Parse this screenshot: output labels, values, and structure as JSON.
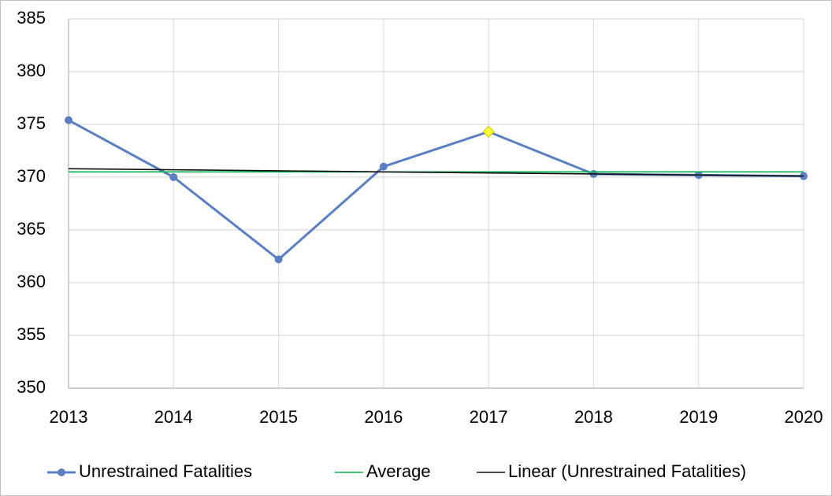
{
  "chart_data": {
    "type": "line",
    "categories": [
      "2013",
      "2014",
      "2015",
      "2016",
      "2017",
      "2018",
      "2019",
      "2020"
    ],
    "series": [
      {
        "name": "Unrestrained Fatalities",
        "color": "#5a7fc2",
        "values": [
          375.4,
          370,
          362.2,
          371,
          374.3,
          370.3,
          370.2,
          370.1
        ],
        "markers": true
      },
      {
        "name": "Average",
        "color": "#00b050",
        "values": [
          370.5,
          370.5,
          370.5,
          370.5,
          370.5,
          370.5,
          370.5,
          370.5
        ],
        "markers": false
      },
      {
        "name": "Linear (Unrestrained Fatalities)",
        "color": "#111111",
        "values": [
          370.8,
          370.7,
          370.6,
          370.5,
          370.4,
          370.3,
          370.2,
          370.1
        ],
        "markers": false
      }
    ],
    "highlight": {
      "series": 0,
      "index": 4,
      "color": "#ffff33"
    },
    "ylim": [
      350,
      385
    ],
    "yticks": [
      350,
      355,
      360,
      365,
      370,
      375,
      380,
      385
    ],
    "grid": true,
    "legend": "bottom"
  }
}
